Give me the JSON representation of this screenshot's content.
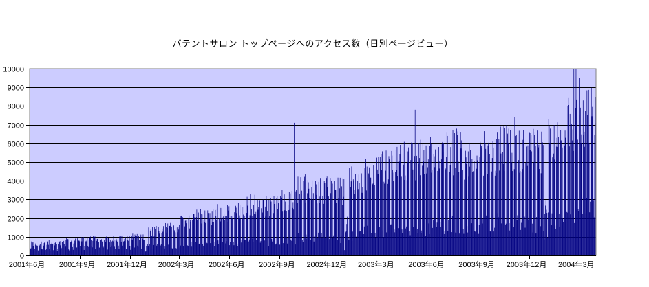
{
  "chart_data": {
    "type": "bar",
    "title": "パテントサロン トップページへのアクセス数（日別ページビュー）",
    "xlabel": "",
    "ylabel": "",
    "granularity": "daily",
    "ylim": [
      0,
      10000
    ],
    "y_tick_step": 1000,
    "y_tick_labels": [
      "0",
      "1000",
      "2000",
      "3000",
      "4000",
      "5000",
      "6000",
      "7000",
      "8000",
      "9000",
      "10000"
    ],
    "x_tick_labels": [
      "2001年6月",
      "2001年9月",
      "2001年12月",
      "2002年3月",
      "2002年6月",
      "2002年9月",
      "2002年12月",
      "2003年3月",
      "2003年6月",
      "2003年9月",
      "2003年12月",
      "2004年3月"
    ],
    "x_tick_every_months": 3,
    "grid": true,
    "legend": null,
    "weekly_pattern": "weekday peaks with weekend troughs",
    "holiday_dip_factor": 0.45,
    "holiday_dip_note": "access drops during late December and the first days of January",
    "months": [
      {
        "month": "2001-06",
        "days": 30,
        "weekday_peak": 750,
        "weekend_low": 330
      },
      {
        "month": "2001-07",
        "days": 31,
        "weekday_peak": 850,
        "weekend_low": 360
      },
      {
        "month": "2001-08",
        "days": 31,
        "weekday_peak": 950,
        "weekend_low": 380
      },
      {
        "month": "2001-09",
        "days": 30,
        "weekday_peak": 1050,
        "weekend_low": 400
      },
      {
        "month": "2001-10",
        "days": 31,
        "weekday_peak": 1100,
        "weekend_low": 420
      },
      {
        "month": "2001-11",
        "days": 30,
        "weekday_peak": 1150,
        "weekend_low": 430
      },
      {
        "month": "2001-12",
        "days": 31,
        "weekday_peak": 1200,
        "weekend_low": 420
      },
      {
        "month": "2002-01",
        "days": 31,
        "weekday_peak": 1600,
        "weekend_low": 480
      },
      {
        "month": "2002-02",
        "days": 28,
        "weekday_peak": 1900,
        "weekend_low": 520
      },
      {
        "month": "2002-03",
        "days": 31,
        "weekday_peak": 2250,
        "weekend_low": 560
      },
      {
        "month": "2002-04",
        "days": 30,
        "weekday_peak": 2500,
        "weekend_low": 600
      },
      {
        "month": "2002-05",
        "days": 31,
        "weekday_peak": 2800,
        "weekend_low": 630
      },
      {
        "month": "2002-06",
        "days": 30,
        "weekday_peak": 3000,
        "weekend_low": 660
      },
      {
        "month": "2002-07",
        "days": 31,
        "weekday_peak": 3350,
        "weekend_low": 700
      },
      {
        "month": "2002-08",
        "days": 31,
        "weekday_peak": 3200,
        "weekend_low": 680
      },
      {
        "month": "2002-09",
        "days": 30,
        "weekday_peak": 3500,
        "weekend_low": 750
      },
      {
        "month": "2002-10",
        "days": 31,
        "weekday_peak": 4400,
        "weekend_low": 950
      },
      {
        "month": "2002-11",
        "days": 30,
        "weekday_peak": 4250,
        "weekend_low": 950
      },
      {
        "month": "2002-12",
        "days": 31,
        "weekday_peak": 4200,
        "weekend_low": 900
      },
      {
        "month": "2003-01",
        "days": 31,
        "weekday_peak": 4900,
        "weekend_low": 1100
      },
      {
        "month": "2003-02",
        "days": 28,
        "weekday_peak": 5400,
        "weekend_low": 1250
      },
      {
        "month": "2003-03",
        "days": 31,
        "weekday_peak": 5900,
        "weekend_low": 1350
      },
      {
        "month": "2003-04",
        "days": 30,
        "weekday_peak": 6100,
        "weekend_low": 1450
      },
      {
        "month": "2003-05",
        "days": 31,
        "weekday_peak": 6300,
        "weekend_low": 1500
      },
      {
        "month": "2003-06",
        "days": 30,
        "weekday_peak": 6600,
        "weekend_low": 1600
      },
      {
        "month": "2003-07",
        "days": 31,
        "weekday_peak": 6800,
        "weekend_low": 1650
      },
      {
        "month": "2003-08",
        "days": 31,
        "weekday_peak": 6200,
        "weekend_low": 1500
      },
      {
        "month": "2003-09",
        "days": 30,
        "weekday_peak": 6700,
        "weekend_low": 1650
      },
      {
        "month": "2003-10",
        "days": 31,
        "weekday_peak": 7000,
        "weekend_low": 1750
      },
      {
        "month": "2003-11",
        "days": 30,
        "weekday_peak": 6900,
        "weekend_low": 1750
      },
      {
        "month": "2003-12",
        "days": 31,
        "weekday_peak": 6800,
        "weekend_low": 1600
      },
      {
        "month": "2004-01",
        "days": 31,
        "weekday_peak": 7300,
        "weekend_low": 1900
      },
      {
        "month": "2004-02",
        "days": 29,
        "weekday_peak": 8500,
        "weekend_low": 2150
      },
      {
        "month": "2004-03",
        "days": 31,
        "weekday_peak": 9200,
        "weekend_low": 2400
      }
    ],
    "spikes": [
      {
        "month": "2002-09",
        "day": 27,
        "value": 7100
      },
      {
        "month": "2003-05",
        "day": 6,
        "value": 7800
      },
      {
        "month": "2003-11",
        "day": 4,
        "value": 7400
      },
      {
        "month": "2004-02",
        "day": 20,
        "value": 10000
      },
      {
        "month": "2004-02",
        "day": 24,
        "value": 10000
      },
      {
        "month": "2004-03",
        "day": 2,
        "value": 9500
      }
    ],
    "colors": {
      "bar": "#000080",
      "plot_bg": "#CCCCFF",
      "gridline": "#000000",
      "plot_border": "#808080",
      "axis": "#000000",
      "text": "#000000",
      "page_bg": "#FFFFFF"
    }
  }
}
